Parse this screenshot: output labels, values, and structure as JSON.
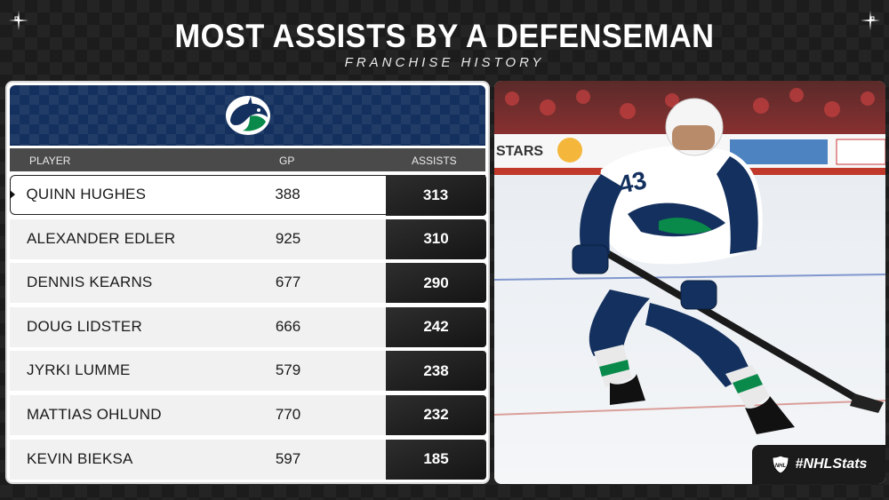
{
  "header": {
    "title": "MOST ASSISTS BY A DEFENSEMAN",
    "subtitle": "FRANCHISE HISTORY"
  },
  "team": {
    "logo_icon": "canucks-orca-logo-icon",
    "primary_color": "#13305e",
    "accent_color": "#0a8a4a"
  },
  "table": {
    "columns": {
      "player": "PLAYER",
      "gp": "GP",
      "assists": "ASSISTS"
    },
    "rows": [
      {
        "player": "QUINN HUGHES",
        "gp": "388",
        "assists": "313"
      },
      {
        "player": "ALEXANDER EDLER",
        "gp": "925",
        "assists": "310"
      },
      {
        "player": "DENNIS KEARNS",
        "gp": "677",
        "assists": "290"
      },
      {
        "player": "DOUG LIDSTER",
        "gp": "666",
        "assists": "242"
      },
      {
        "player": "JYRKI LUMME",
        "gp": "579",
        "assists": "238"
      },
      {
        "player": "MATTIAS OHLUND",
        "gp": "770",
        "assists": "232"
      },
      {
        "player": "KEVIN BIEKSA",
        "gp": "597",
        "assists": "185"
      }
    ]
  },
  "photo": {
    "boards_text": "STARS",
    "jersey_number": "43"
  },
  "brand": {
    "hashtag": "#NHLStats",
    "logo_icon": "nhl-shield-icon"
  }
}
